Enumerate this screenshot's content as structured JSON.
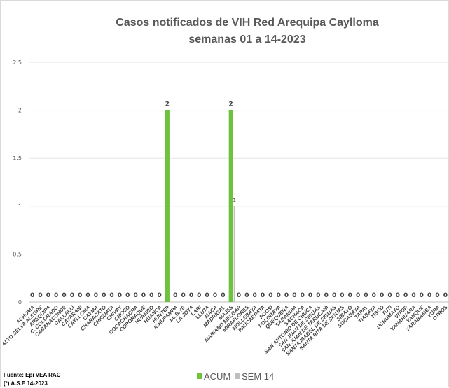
{
  "chart_data": {
    "type": "bar",
    "title": "Casos notificados de VIH Red Arequipa Caylloma",
    "subtitle": "semanas 01 a 14-2023",
    "ylim": [
      0,
      2.5
    ],
    "yticks": [
      "0",
      "0.5",
      "1",
      "1.5",
      "2",
      "2.5"
    ],
    "grid": true,
    "legend_position": "bottom",
    "categories": [
      "ACHOMA",
      "ALTO SELVA ALEGRE",
      "AREQUIPA",
      "C. COLORADO",
      "CABANACONDE",
      "CALLALLI",
      "CAYARANI",
      "CAYLLOMA",
      "CAYMA",
      "CHARACATO",
      "CHIGUATA",
      "CHIVAY",
      "CHOCO",
      "COCACHACRA",
      "COPORAQUE",
      "HUAMBO",
      "HUANCA",
      "HUNTER",
      "ICHUPAMPA",
      "J.L.B.YR",
      "LA JOYA",
      "LARI",
      "LLUTA",
      "MACA",
      "MADRIGAL",
      "MAJES",
      "MARIANO MELGAR",
      "MIRAFLORES",
      "MOLLEBAYA",
      "PAUCARPATA",
      "POCSI",
      "POLOBAYA",
      "QUEQUEÑA",
      "SABANDIA",
      "SACHACA",
      "SAN ANTONIO DE CHUCA",
      "SAN JUAN DE SIGUAS",
      "SAN JUAN DE TARUCANI",
      "SANTA ISABEL DE SIGUAS",
      "SANTA RITA DE SIGUAS",
      "SIBAYO",
      "SOCABAYA",
      "TAPAY",
      "TIABAYA",
      "TISCO",
      "TUTI",
      "UCHUMAYO",
      "VITOR",
      "YANAHUARA",
      "YANQUE",
      "YARABAMBA",
      "YURA",
      "OTROS"
    ],
    "series": [
      {
        "name": "ACUM",
        "color": "#6dc23e",
        "values": [
          0,
          0,
          0,
          0,
          0,
          0,
          0,
          0,
          0,
          0,
          0,
          0,
          0,
          0,
          0,
          0,
          0,
          2,
          0,
          0,
          0,
          0,
          0,
          0,
          0,
          2,
          0,
          0,
          0,
          0,
          0,
          0,
          0,
          0,
          0,
          0,
          0,
          0,
          0,
          0,
          0,
          0,
          0,
          0,
          0,
          0,
          0,
          0,
          0,
          0,
          0,
          0,
          0
        ]
      },
      {
        "name": "SEM 14",
        "color": "#bfbfbf",
        "values": [
          null,
          null,
          null,
          null,
          null,
          null,
          null,
          null,
          null,
          null,
          null,
          null,
          null,
          null,
          null,
          null,
          null,
          null,
          null,
          null,
          null,
          null,
          null,
          null,
          null,
          1,
          null,
          null,
          null,
          null,
          null,
          null,
          null,
          null,
          null,
          null,
          null,
          null,
          null,
          null,
          null,
          null,
          null,
          null,
          null,
          null,
          null,
          null,
          null,
          null,
          null,
          null,
          null
        ]
      }
    ]
  },
  "footer": {
    "source": "Fuente: Epi VEA RAC",
    "note": "(*) A.S.E 14-2023"
  }
}
